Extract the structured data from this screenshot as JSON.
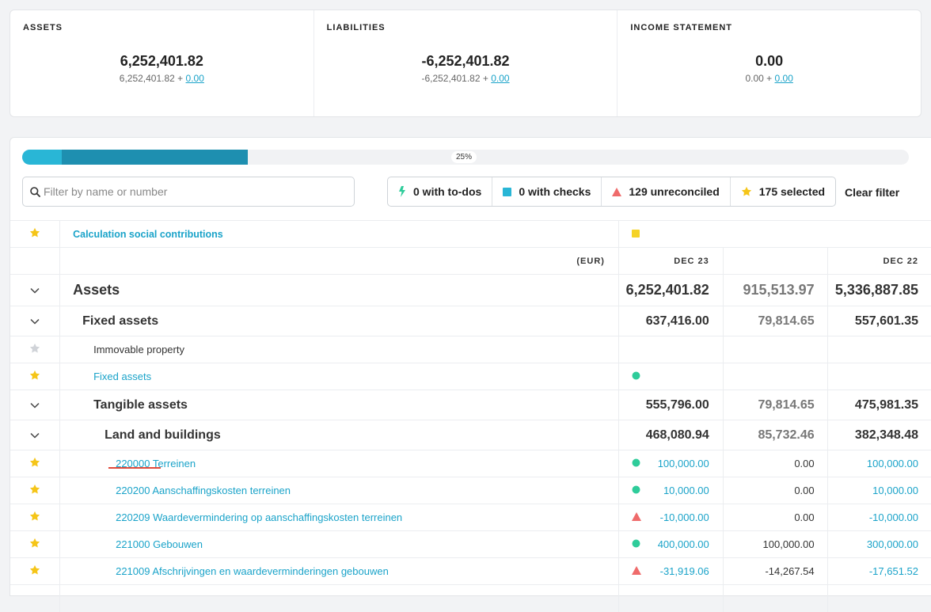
{
  "summary": [
    {
      "title": "ASSETS",
      "total": "6,252,401.82",
      "base": "6,252,401.82 +",
      "delta": "0.00"
    },
    {
      "title": "LIABILITIES",
      "total": "-6,252,401.82",
      "base": "-6,252,401.82 +",
      "delta": "0.00"
    },
    {
      "title": "INCOME STATEMENT",
      "total": "0.00",
      "base": "0.00 +",
      "delta": "0.00"
    }
  ],
  "progress": {
    "label": "25%",
    "segment_a_fraction": 0.045,
    "segment_b_fraction": 0.21
  },
  "search": {
    "placeholder": "Filter by name or number",
    "value": ""
  },
  "filters": [
    {
      "icon": "bolt-icon",
      "label": "0 with to-dos",
      "color": "#2ecc9a"
    },
    {
      "icon": "square-icon",
      "label": "0 with checks",
      "color": "#29b6d6"
    },
    {
      "icon": "triangle-icon",
      "label": "129 unreconciled",
      "color": "#ef6b6b"
    },
    {
      "icon": "star-icon",
      "label": "175 selected",
      "color": "#f5c518"
    }
  ],
  "clear_filter": "Clear filter",
  "pinned": {
    "label": "Calculation social contributions",
    "status": "square",
    "status_color": "#f5d327"
  },
  "columns": {
    "currency": "(EUR)",
    "period1": "DEC 23",
    "period2": "DEC 22"
  },
  "rows": [
    {
      "type": "group0",
      "name": "Assets",
      "v1": "6,252,401.82",
      "v2": "915,513.97",
      "v3": "5,336,887.85"
    },
    {
      "type": "group1",
      "name": "Fixed assets",
      "indent": 1,
      "v1": "637,416.00",
      "v2": "79,814.65",
      "v3": "557,601.35"
    },
    {
      "type": "label",
      "name": "Immovable property",
      "indent": 2,
      "star": "grey"
    },
    {
      "type": "link",
      "name": "Fixed assets",
      "indent": 2,
      "star": "yellow",
      "status": "dot"
    },
    {
      "type": "group1",
      "name": "Tangible assets",
      "indent": 2,
      "v1": "555,796.00",
      "v2": "79,814.65",
      "v3": "475,981.35"
    },
    {
      "type": "group1",
      "name": "Land and buildings",
      "indent": 3,
      "v1": "468,080.94",
      "v2": "85,732.46",
      "v3": "382,348.48"
    },
    {
      "type": "account",
      "name": "220000 Terreinen",
      "indent": 4,
      "star": "yellow",
      "status": "dot",
      "v1": "100,000.00",
      "v2": "0.00",
      "v3": "100,000.00"
    },
    {
      "type": "account",
      "name": "220200 Aanschaffingskosten terreinen",
      "indent": 4,
      "star": "yellow",
      "status": "dot",
      "v1": "10,000.00",
      "v2": "0.00",
      "v3": "10,000.00"
    },
    {
      "type": "account",
      "name": "220209 Waardevermindering op aanschaffingskosten terreinen",
      "indent": 4,
      "star": "yellow",
      "status": "triangle",
      "v1": "-10,000.00",
      "v2": "0.00",
      "v3": "-10,000.00"
    },
    {
      "type": "account",
      "name": "221000 Gebouwen",
      "indent": 4,
      "star": "yellow",
      "status": "dot",
      "v1": "400,000.00",
      "v2": "100,000.00",
      "v3": "300,000.00"
    },
    {
      "type": "account",
      "name": "221009 Afschrijvingen en waardeverminderingen gebouwen",
      "indent": 4,
      "star": "yellow",
      "status": "triangle",
      "v1": "-31,919.06",
      "v2": "-14,267.54",
      "v3": "-17,651.52"
    },
    {
      "type": "blank"
    }
  ],
  "colors": {
    "link": "#1aa3c9",
    "star": "#f5c518",
    "star_off": "#d0d3d8",
    "dot": "#2ecc9a",
    "triangle": "#ef6b6b"
  }
}
